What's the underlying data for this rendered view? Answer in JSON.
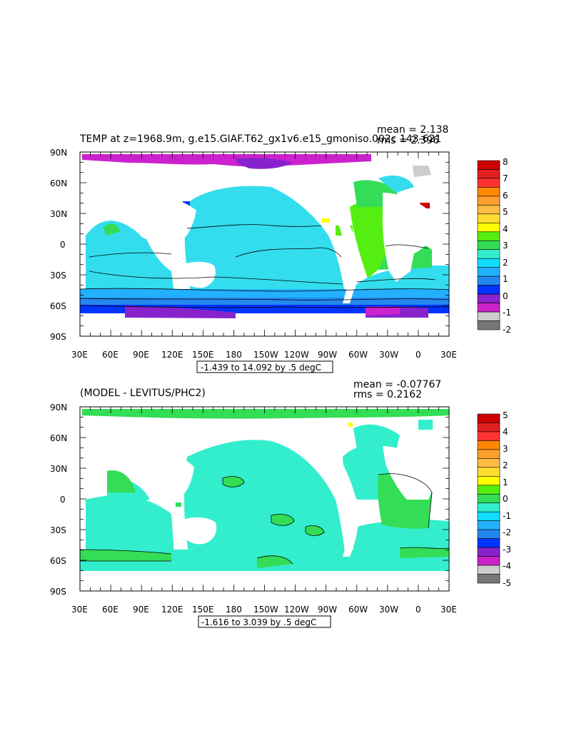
{
  "colors": {
    "land": "#ffffff",
    "frame": "#000000",
    "scale_top": [
      "#cc0000",
      "#e02020",
      "#ff3333",
      "#ff8800",
      "#ff9f30",
      "#ffbb44",
      "#ffdd33",
      "#ffff00",
      "#55ee11",
      "#33dd55",
      "#33eecc",
      "#11ddff",
      "#22b0ff",
      "#2288ee",
      "#0033ff",
      "#8822cc",
      "#cc22cc",
      "#cccccc",
      "#777777"
    ],
    "scale_bottom": [
      "#cc0000",
      "#e02020",
      "#ff3333",
      "#ff8800",
      "#ff9f30",
      "#ffbb44",
      "#ffdd33",
      "#ffff00",
      "#55ee11",
      "#33dd55",
      "#33eecc",
      "#11ddff",
      "#22b0ff",
      "#2288ee",
      "#0033ff",
      "#8822cc",
      "#cc22cc",
      "#cccccc",
      "#777777"
    ]
  },
  "chart_data": [
    {
      "type": "heatmap",
      "title": "TEMP at z=1968.9m, g.e15.GIAF.T62_gx1v6.e15_gmoniso.002c 143-621",
      "stats": {
        "mean": "mean = 2.138",
        "rms": "rms = 2.396"
      },
      "x_ticks": [
        "30E",
        "60E",
        "90E",
        "120E",
        "150E",
        "180",
        "150W",
        "120W",
        "90W",
        "60W",
        "30W",
        "0",
        "30E"
      ],
      "y_ticks": [
        "90N",
        "60N",
        "30N",
        "0",
        "30S",
        "60S",
        "90S"
      ],
      "contour_info": "-1.439 to 14.092 by .5 degC",
      "colorbar_labels": [
        "8",
        "7",
        "6",
        "5",
        "4",
        "3",
        "2",
        "1",
        "0",
        "-1",
        "-2"
      ],
      "xlim": [
        30,
        390
      ],
      "ylim": [
        -90,
        90
      ],
      "units": "degC"
    },
    {
      "type": "heatmap",
      "title": "(MODEL - LEVITUS/PHC2)",
      "stats": {
        "mean": "mean = -0.07767",
        "rms": "rms = 0.2162"
      },
      "x_ticks": [
        "30E",
        "60E",
        "90E",
        "120E",
        "150E",
        "180",
        "150W",
        "120W",
        "90W",
        "60W",
        "30W",
        "0",
        "30E"
      ],
      "y_ticks": [
        "90N",
        "60N",
        "30N",
        "0",
        "30S",
        "60S",
        "90S"
      ],
      "contour_info": "-1.616 to 3.039 by .5 degC",
      "colorbar_labels": [
        "5",
        "4",
        "3",
        "2",
        "1",
        "0",
        "-1",
        "-2",
        "-3",
        "-4",
        "-5"
      ],
      "xlim": [
        30,
        390
      ],
      "ylim": [
        -90,
        90
      ],
      "units": "degC"
    }
  ]
}
